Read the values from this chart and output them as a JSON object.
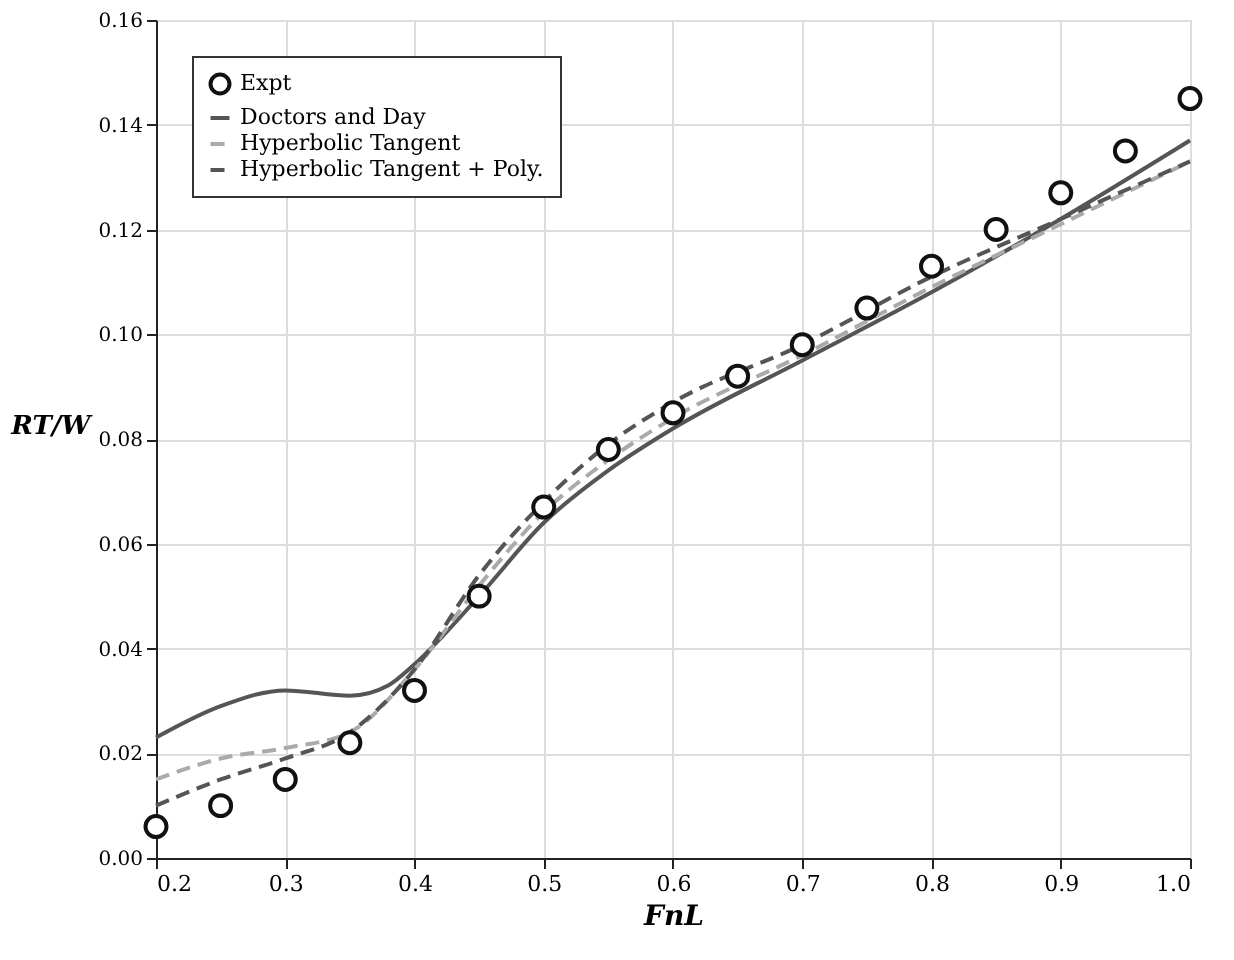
{
  "chart_data": {
    "type": "line",
    "xlabel": "FnL",
    "ylabel": "RT/W",
    "xlim": [
      0.2,
      1.0
    ],
    "ylim": [
      0,
      0.16
    ],
    "xticks": [
      0.2,
      0.3,
      0.4,
      0.5,
      0.6,
      0.7,
      0.8,
      0.9,
      {
        "value": 1.0,
        "label": "1.0"
      }
    ],
    "yticks": [
      {
        "value": 0,
        "label": "0.00"
      },
      {
        "value": 0.02,
        "label": "0.02"
      },
      {
        "value": 0.04,
        "label": "0.04"
      },
      {
        "value": 0.06,
        "label": "0.06"
      },
      {
        "value": 0.08,
        "label": "0.08"
      },
      {
        "value": 0.1,
        "label": "0.10"
      },
      {
        "value": 0.12,
        "label": "0.12"
      },
      {
        "value": 0.14,
        "label": "0.14"
      },
      {
        "value": 0.16,
        "label": "0.16"
      }
    ],
    "grid": true,
    "legend": "top left",
    "series": [
      {
        "name": "Expt",
        "type": "scatter",
        "marker": "circle",
        "color": "#111111",
        "x": [
          0.2,
          0.25,
          0.3,
          0.35,
          0.4,
          0.45,
          0.5,
          0.55,
          0.6,
          0.65,
          0.7,
          0.75,
          0.8,
          0.85,
          0.9,
          0.95,
          1.0
        ],
        "values": [
          0.006,
          0.01,
          0.015,
          0.022,
          0.032,
          0.05,
          0.067,
          0.078,
          0.085,
          0.092,
          0.098,
          0.105,
          0.113,
          0.12,
          0.127,
          0.135,
          0.145
        ]
      },
      {
        "name": "Doctors and Day",
        "line_style": "solid",
        "color": "#555555",
        "x": [
          0.2,
          0.25,
          0.3,
          0.35,
          0.38,
          0.4,
          0.45,
          0.5,
          0.55,
          0.6,
          0.7,
          0.8,
          0.9,
          1.0
        ],
        "values": [
          0.023,
          0.029,
          0.032,
          0.031,
          0.033,
          0.037,
          0.05,
          0.064,
          0.074,
          0.082,
          0.095,
          0.108,
          0.122,
          0.137
        ]
      },
      {
        "name": "Hyperbolic Tangent",
        "line_style": "dashed",
        "color": "#aaaaaa",
        "x": [
          0.2,
          0.25,
          0.3,
          0.35,
          0.4,
          0.45,
          0.5,
          0.55,
          0.6,
          0.7,
          0.8,
          0.9,
          1.0
        ],
        "values": [
          0.015,
          0.019,
          0.021,
          0.024,
          0.036,
          0.052,
          0.066,
          0.076,
          0.084,
          0.096,
          0.109,
          0.121,
          0.133
        ]
      },
      {
        "name": "Hyperbolic Tangent + Poly.",
        "line_style": "dashed",
        "color": "#555555",
        "x": [
          0.2,
          0.25,
          0.3,
          0.35,
          0.4,
          0.45,
          0.5,
          0.55,
          0.6,
          0.7,
          0.8,
          0.9,
          1.0
        ],
        "values": [
          0.01,
          0.015,
          0.019,
          0.024,
          0.036,
          0.054,
          0.068,
          0.079,
          0.087,
          0.098,
          0.111,
          0.122,
          0.133
        ]
      }
    ]
  }
}
